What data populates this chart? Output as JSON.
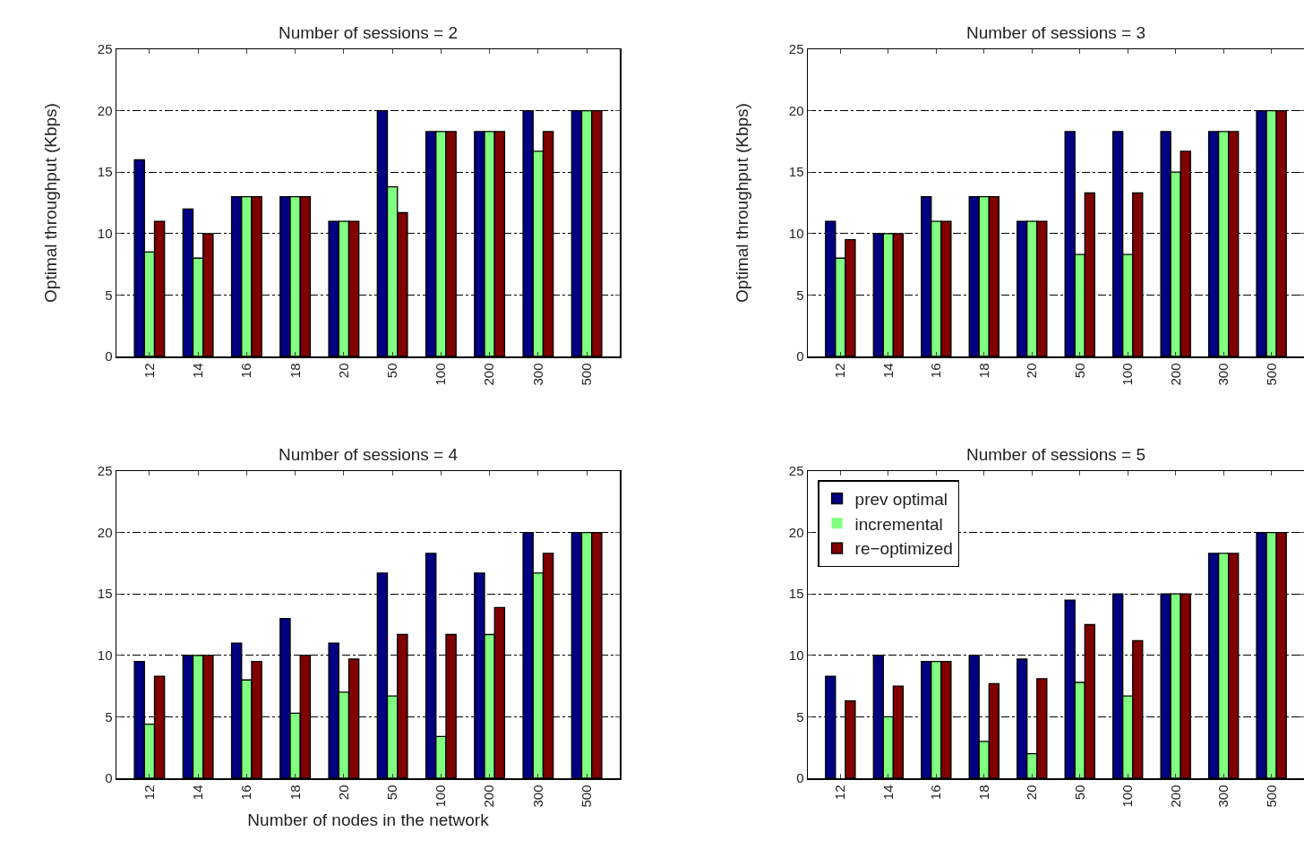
{
  "chart_data": [
    {
      "type": "bar",
      "title": "Number of sessions = 2",
      "ylabel": "Optimal throughput (Kbps)",
      "categories": [
        "12",
        "14",
        "16",
        "18",
        "20",
        "50",
        "100",
        "200",
        "300",
        "500"
      ],
      "ylim": [
        0,
        25
      ],
      "yticks": [
        0,
        5,
        10,
        15,
        20,
        25
      ],
      "grid": "y",
      "legend": false,
      "series": [
        {
          "color": "#000080",
          "values": [
            16,
            12,
            13,
            13,
            11,
            20,
            18.3,
            18.3,
            20,
            20
          ]
        },
        {
          "color": "#80ff80",
          "values": [
            8.5,
            8,
            13,
            13,
            11,
            13.8,
            18.3,
            18.3,
            16.7,
            20
          ]
        },
        {
          "color": "#800000",
          "values": [
            11,
            10,
            13,
            13,
            11,
            11.7,
            18.3,
            18.3,
            18.3,
            20
          ]
        }
      ]
    },
    {
      "type": "bar",
      "title": "Number of sessions = 3",
      "ylabel": "Optimal throughput (Kbps)",
      "categories": [
        "12",
        "14",
        "16",
        "18",
        "20",
        "50",
        "100",
        "200",
        "300",
        "500"
      ],
      "ylim": [
        0,
        25
      ],
      "yticks": [
        0,
        5,
        10,
        15,
        20,
        25
      ],
      "grid": "y",
      "legend": false,
      "series": [
        {
          "color": "#000080",
          "values": [
            11,
            10,
            13,
            13,
            11,
            18.3,
            18.3,
            18.3,
            18.3,
            20
          ]
        },
        {
          "color": "#80ff80",
          "values": [
            8,
            10,
            11,
            13,
            11,
            8.3,
            8.3,
            15,
            18.3,
            20
          ]
        },
        {
          "color": "#800000",
          "values": [
            9.5,
            10,
            11,
            13,
            11,
            13.3,
            13.3,
            16.7,
            18.3,
            20
          ]
        }
      ]
    },
    {
      "type": "bar",
      "title": "Number of sessions = 4",
      "xlabel": "Number of nodes in the network",
      "categories": [
        "12",
        "14",
        "16",
        "18",
        "20",
        "50",
        "100",
        "200",
        "300",
        "500"
      ],
      "ylim": [
        0,
        25
      ],
      "yticks": [
        0,
        5,
        10,
        15,
        20,
        25
      ],
      "grid": "y",
      "legend": false,
      "series": [
        {
          "color": "#000080",
          "values": [
            9.5,
            10,
            11,
            13,
            11,
            16.7,
            18.3,
            16.7,
            20,
            20
          ]
        },
        {
          "color": "#80ff80",
          "values": [
            4.4,
            10,
            8,
            5.3,
            7,
            6.7,
            3.4,
            11.7,
            16.7,
            20
          ]
        },
        {
          "color": "#800000",
          "values": [
            8.3,
            10,
            9.5,
            10,
            9.7,
            11.7,
            11.7,
            13.9,
            18.3,
            20
          ]
        }
      ]
    },
    {
      "type": "bar",
      "title": "Number of sessions = 5",
      "categories": [
        "12",
        "14",
        "16",
        "18",
        "20",
        "50",
        "100",
        "200",
        "300",
        "500"
      ],
      "ylim": [
        0,
        25
      ],
      "yticks": [
        0,
        5,
        10,
        15,
        20,
        25
      ],
      "grid": "y",
      "legend": "top left",
      "series": [
        {
          "name": "prev optimal",
          "color": "#000080",
          "values": [
            8.3,
            10,
            9.5,
            10,
            9.7,
            14.5,
            15,
            15,
            18.3,
            20
          ]
        },
        {
          "name": "incremental",
          "color": "#80ff80",
          "values": [
            0,
            5,
            9.5,
            3,
            2,
            7.8,
            6.7,
            15,
            18.3,
            20
          ]
        },
        {
          "name": "re−optimized",
          "color": "#800000",
          "values": [
            6.3,
            7.5,
            9.5,
            7.7,
            8.1,
            12.5,
            11.2,
            15,
            18.3,
            20
          ]
        }
      ]
    }
  ]
}
